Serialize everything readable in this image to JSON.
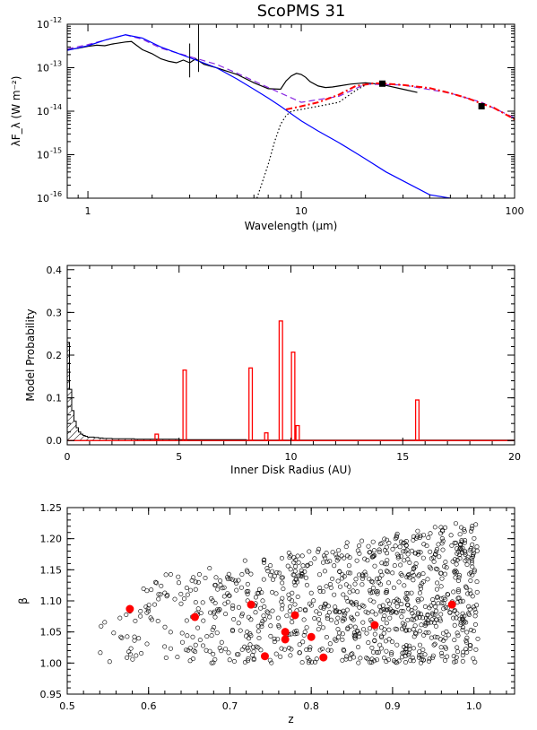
{
  "title": "ScoPMS 31",
  "colors": {
    "ink": "#000000",
    "model_red": "#ff0000",
    "photosphere_blue": "#0000ff",
    "total_purple": "#8a2be2"
  },
  "chart_data": [
    {
      "id": "sed",
      "type": "line",
      "title": "ScoPMS 31",
      "xlabel": "Wavelength (μm)",
      "ylabel": "λF_λ (W m⁻²)",
      "xscale": "log",
      "yscale": "log",
      "xlim": [
        0.8,
        100
      ],
      "ylim": [
        1e-16,
        1e-12
      ],
      "xticks": [
        {
          "v": 1,
          "label": "1"
        },
        {
          "v": 10,
          "label": "10"
        },
        {
          "v": 100,
          "label": "100"
        }
      ],
      "yticks": [
        {
          "v": 1e-16,
          "label": "10",
          "exp": "-16"
        },
        {
          "v": 1e-15,
          "label": "10",
          "exp": "-15"
        },
        {
          "v": 1e-14,
          "label": "10",
          "exp": "-14"
        },
        {
          "v": 1e-13,
          "label": "10",
          "exp": "-13"
        },
        {
          "v": 1e-12,
          "label": "10",
          "exp": "-12"
        }
      ],
      "series": [
        {
          "key": "observed_spectrum",
          "color": "#000000",
          "style": "solid",
          "x": [
            0.8,
            0.9,
            1.0,
            1.1,
            1.2,
            1.3,
            1.5,
            1.6,
            1.8,
            2.0,
            2.2,
            2.4,
            2.6,
            2.8,
            3.0,
            3.2,
            3.5,
            4.0,
            5.0,
            6.0,
            7.0,
            8.0,
            8.5,
            9.0,
            9.5,
            10.0,
            10.5,
            11.0,
            12.0,
            13.0,
            14.0,
            15.0,
            17.0,
            20.0,
            22.0,
            25.0,
            30.0,
            35.0
          ],
          "y": [
            2.6e-13,
            2.8e-13,
            3.1e-13,
            3.3e-13,
            3.2e-13,
            3.5e-13,
            3.9e-13,
            4e-13,
            2.6e-13,
            2.1e-13,
            1.6e-13,
            1.4e-13,
            1.3e-13,
            1.5e-13,
            1.3e-13,
            1.6e-13,
            1.2e-13,
            1e-13,
            7e-14,
            4.5e-14,
            3.3e-14,
            3.2e-14,
            5e-14,
            6.5e-14,
            7.4e-14,
            7e-14,
            6e-14,
            4.8e-14,
            3.8e-14,
            3.5e-14,
            3.6e-14,
            3.8e-14,
            4.2e-14,
            4.5e-14,
            4.3e-14,
            3.9e-14,
            3.2e-14,
            2.7e-14
          ]
        },
        {
          "key": "model_total",
          "color": "#8a2be2",
          "style": "dashed",
          "x": [
            0.8,
            1.0,
            1.2,
            1.5,
            1.8,
            2.2,
            3.0,
            4.0,
            5.0,
            7.0,
            10.0,
            15.0,
            20.0,
            30.0,
            50.0,
            70.0,
            100.0
          ],
          "y": [
            2.7e-13,
            3.4e-13,
            4.3e-13,
            5.7e-13,
            4.5e-13,
            2.8e-13,
            1.8e-13,
            1.2e-13,
            7.5e-14,
            3.5e-14,
            1.6e-14,
            2.2e-14,
            4.2e-14,
            4e-14,
            2.6e-14,
            1.6e-14,
            7e-15
          ]
        },
        {
          "key": "model_disk",
          "color": "#ff0000",
          "style": "dashdot",
          "x": [
            8.5,
            10.0,
            12.0,
            15.0,
            18.0,
            22.0,
            25.0,
            30.0,
            40.0,
            50.0,
            60.0,
            70.0,
            80.0,
            100.0
          ],
          "y": [
            1.1e-14,
            1.3e-14,
            1.6e-14,
            2.4e-14,
            3.8e-14,
            4.4e-14,
            4.3e-14,
            4e-14,
            3.4e-14,
            2.6e-14,
            2e-14,
            1.5e-14,
            1.2e-14,
            6.5e-15
          ]
        },
        {
          "key": "model_dust",
          "color": "#000000",
          "style": "dotted",
          "x": [
            6.2,
            6.5,
            7.0,
            7.5,
            8.0,
            8.5,
            9.0,
            10.0,
            12.0,
            15.0,
            18.0,
            20.0
          ],
          "y": [
            1e-16,
            2e-16,
            6e-16,
            2e-15,
            5e-15,
            8e-15,
            1e-14,
            1.1e-14,
            1.3e-14,
            1.6e-14,
            3e-14,
            4e-14
          ]
        },
        {
          "key": "photosphere",
          "color": "#0000ff",
          "style": "solid",
          "x": [
            0.8,
            1.0,
            1.2,
            1.5,
            1.8,
            2.2,
            3.0,
            4.0,
            5.0,
            6.0,
            7.0,
            8.0,
            10.0,
            12.0,
            15.0,
            18.0,
            20.0,
            25.0,
            30.0,
            40.0,
            50.0
          ],
          "y": [
            2.5e-13,
            3.2e-13,
            4.3e-13,
            5.7e-13,
            4.8e-13,
            3e-13,
            1.7e-13,
            1e-13,
            5.5e-14,
            3.2e-14,
            2e-14,
            1.3e-14,
            6e-15,
            3.5e-15,
            1.9e-15,
            1.1e-15,
            8e-16,
            4e-16,
            2.5e-16,
            1.2e-16,
            1e-16
          ]
        }
      ],
      "errorbars": [
        {
          "x": 3.0,
          "ylow": 6e-14,
          "yhigh": 3.6e-13
        },
        {
          "x": 3.3,
          "ylow": 8e-14,
          "yhigh": 1e-12
        }
      ],
      "points": [
        {
          "x": 24.0,
          "y": 4.3e-14,
          "marker": "square"
        },
        {
          "x": 70.0,
          "y": 1.3e-14,
          "marker": "square"
        }
      ]
    },
    {
      "id": "probability",
      "type": "bar",
      "xlabel": "Inner Disk Radius (AU)",
      "ylabel": "Model Probability",
      "xlim": [
        0,
        20
      ],
      "ylim": [
        -0.01,
        0.41
      ],
      "xticks": [
        {
          "v": 0,
          "label": "0"
        },
        {
          "v": 5,
          "label": "5"
        },
        {
          "v": 10,
          "label": "10"
        },
        {
          "v": 15,
          "label": "15"
        },
        {
          "v": 20,
          "label": "20"
        }
      ],
      "yticks": [
        {
          "v": 0,
          "label": "0.0"
        },
        {
          "v": 0.1,
          "label": "0.1"
        },
        {
          "v": 0.2,
          "label": "0.2"
        },
        {
          "v": 0.3,
          "label": "0.3"
        },
        {
          "v": 0.4,
          "label": "0.4"
        }
      ],
      "bars": [
        {
          "x": 4.0,
          "width": 0.15,
          "value": 0.015
        },
        {
          "x": 5.25,
          "width": 0.15,
          "value": 0.165
        },
        {
          "x": 8.2,
          "width": 0.15,
          "value": 0.17
        },
        {
          "x": 8.9,
          "width": 0.15,
          "value": 0.018
        },
        {
          "x": 9.55,
          "width": 0.15,
          "value": 0.28
        },
        {
          "x": 10.1,
          "width": 0.15,
          "value": 0.207
        },
        {
          "x": 10.3,
          "width": 0.15,
          "value": 0.035
        },
        {
          "x": 15.65,
          "width": 0.15,
          "value": 0.095
        }
      ],
      "prior_histogram": {
        "x": [
          0,
          0.1,
          0.2,
          0.3,
          0.4,
          0.5,
          0.6,
          0.7,
          0.8,
          0.9,
          1.0,
          1.2,
          1.4,
          1.6,
          1.8,
          2.0,
          2.5,
          3.0,
          3.5,
          4.0,
          5.0,
          6.0,
          7.0,
          8.0,
          10.0,
          12.0,
          15.0,
          20.0
        ],
        "y": [
          0.23,
          0.12,
          0.07,
          0.045,
          0.03,
          0.02,
          0.015,
          0.012,
          0.01,
          0.008,
          0.008,
          0.007,
          0.006,
          0.005,
          0.005,
          0.004,
          0.004,
          0.003,
          0.003,
          0.003,
          0.002,
          0.002,
          0.002,
          0.001,
          0.001,
          0.001,
          0.001,
          0.001
        ]
      }
    },
    {
      "id": "scatter",
      "type": "scatter",
      "xlabel": "z",
      "ylabel": "β",
      "xlim": [
        0.5,
        1.05
      ],
      "ylim": [
        0.95,
        1.25
      ],
      "xticks": [
        {
          "v": 0.5,
          "label": "0.5"
        },
        {
          "v": 0.6,
          "label": "0.6"
        },
        {
          "v": 0.7,
          "label": "0.7"
        },
        {
          "v": 0.8,
          "label": "0.8"
        },
        {
          "v": 0.9,
          "label": "0.9"
        },
        {
          "v": 1.0,
          "label": "1.0"
        }
      ],
      "yticks": [
        {
          "v": 0.95,
          "label": "0.95"
        },
        {
          "v": 1.0,
          "label": "1.00"
        },
        {
          "v": 1.05,
          "label": "1.05"
        },
        {
          "v": 1.1,
          "label": "1.10"
        },
        {
          "v": 1.15,
          "label": "1.15"
        },
        {
          "v": 1.2,
          "label": "1.20"
        },
        {
          "v": 1.25,
          "label": "1.25"
        }
      ],
      "grid_samples": 1000,
      "highlighted": [
        {
          "x": 0.577,
          "y": 1.087
        },
        {
          "x": 0.657,
          "y": 1.074
        },
        {
          "x": 0.726,
          "y": 1.094
        },
        {
          "x": 0.743,
          "y": 1.011
        },
        {
          "x": 0.768,
          "y": 1.05
        },
        {
          "x": 0.768,
          "y": 1.038
        },
        {
          "x": 0.78,
          "y": 1.077
        },
        {
          "x": 0.8,
          "y": 1.042
        },
        {
          "x": 0.815,
          "y": 1.009
        },
        {
          "x": 0.878,
          "y": 1.061
        },
        {
          "x": 0.973,
          "y": 1.094
        }
      ]
    }
  ]
}
